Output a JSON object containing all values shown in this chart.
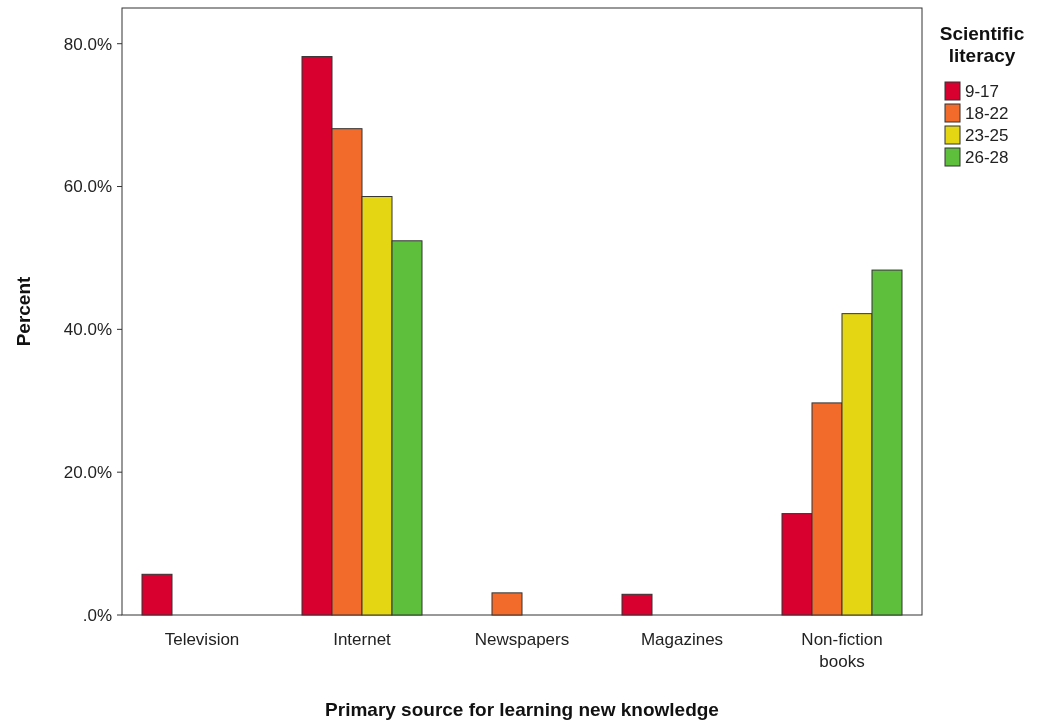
{
  "chart_data": {
    "type": "bar",
    "xlabel": "Primary source for learning new knowledge",
    "ylabel": "Percent",
    "legend_title": "Scientific literacy",
    "legend": "top right",
    "grid": false,
    "categories": [
      "Television",
      "Internet",
      "Newspapers",
      "Magazines",
      "Non-fiction books"
    ],
    "ylim": [
      0,
      85
    ],
    "yticks": [
      {
        "value": 0,
        "label": ".0%"
      },
      {
        "value": 20,
        "label": "20.0%"
      },
      {
        "value": 40,
        "label": "40.0%"
      },
      {
        "value": 60,
        "label": "60.0%"
      },
      {
        "value": 80,
        "label": "80.0%"
      }
    ],
    "series": [
      {
        "name": "9-17",
        "color": "#d7002f",
        "values": [
          5.7,
          78.2,
          null,
          2.9,
          14.2
        ]
      },
      {
        "name": "18-22",
        "color": "#f26b2a",
        "values": [
          null,
          68.1,
          3.1,
          null,
          29.7
        ]
      },
      {
        "name": "23-25",
        "color": "#e5d614",
        "values": [
          null,
          58.6,
          null,
          null,
          42.2
        ]
      },
      {
        "name": "26-28",
        "color": "#5dbf3c",
        "values": [
          null,
          52.4,
          null,
          null,
          48.3
        ]
      }
    ]
  }
}
